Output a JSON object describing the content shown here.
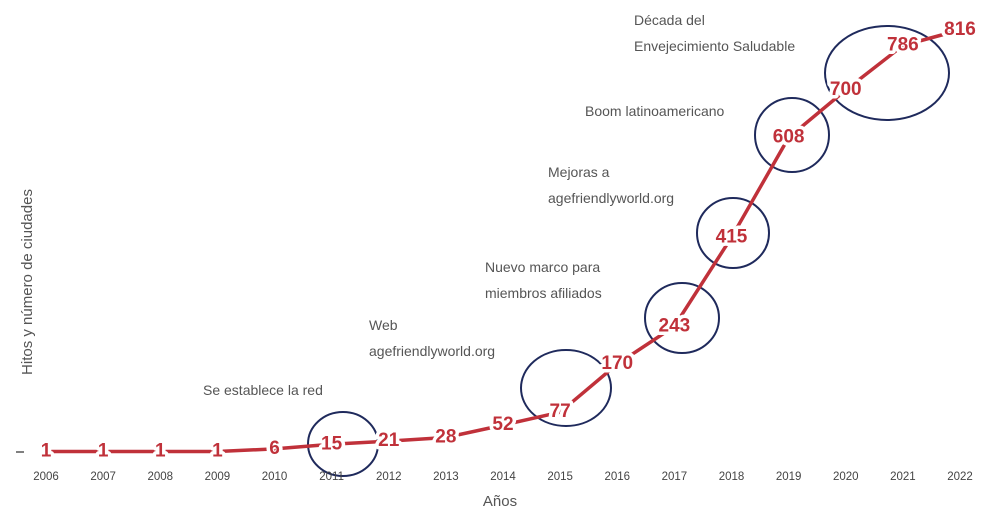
{
  "chart_data": {
    "type": "line",
    "x_label": "Años",
    "y_label": "Hitos y número de ciudades",
    "categories": [
      "2006",
      "2007",
      "2008",
      "2009",
      "2010",
      "2011",
      "2012",
      "2013",
      "2014",
      "2015",
      "2016",
      "2017",
      "2018",
      "2019",
      "2020",
      "2021",
      "2022"
    ],
    "values": [
      1,
      1,
      1,
      1,
      6,
      15,
      21,
      28,
      52,
      77,
      170,
      243,
      415,
      608,
      700,
      786,
      816
    ],
    "color": "#c0313a",
    "annotations": [
      [
        "Se establece la red"
      ],
      [
        "Web",
        "agefriendlyworld.org"
      ],
      [
        "Nuevo marco para",
        "miembros afiliados"
      ],
      [
        "Mejoras a",
        "agefriendlyworld.org"
      ],
      [
        "Boom latinoamericano"
      ],
      [
        "Década del",
        "Envejecimiento Saludable"
      ]
    ]
  }
}
